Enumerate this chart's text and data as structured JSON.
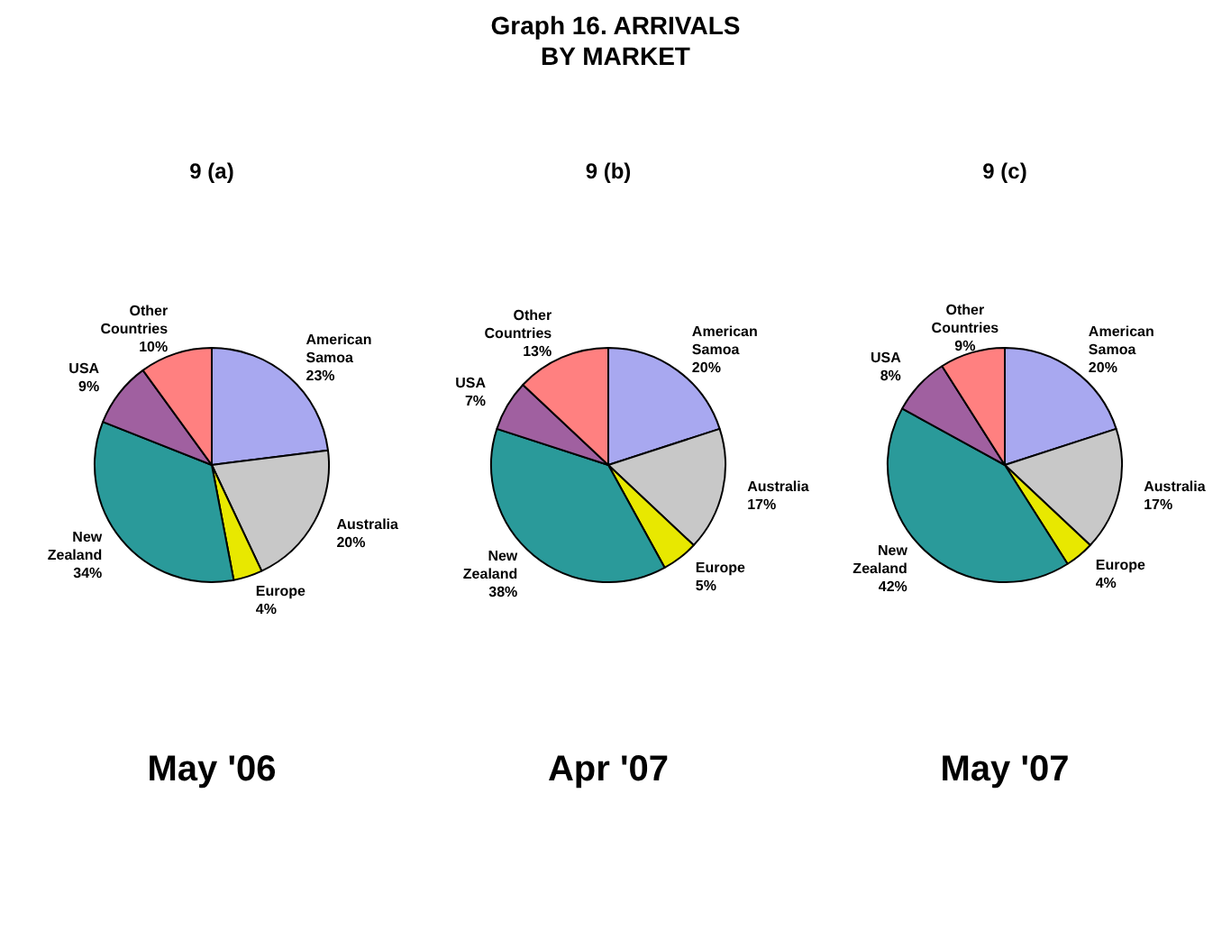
{
  "chart_data": [
    {
      "type": "other",
      "title": "Graph 16. ARRIVALS BY MARKET"
    },
    {
      "type": "pie",
      "title": "9 (a)",
      "categories": [
        "American Samoa",
        "Australia",
        "Europe",
        "New Zealand",
        "USA",
        "Other Countries"
      ],
      "values": [
        23,
        20,
        4,
        34,
        9,
        10
      ],
      "value_labels": [
        "23%",
        "20%",
        "4%",
        "34%",
        "9%",
        "10%"
      ],
      "colors": [
        "#a8a8f0",
        "#c8c8c8",
        "#e8e800",
        "#2a9a9a",
        "#a060a0",
        "#ff8080"
      ],
      "legend": false,
      "annotations": [
        "May '06"
      ]
    },
    {
      "type": "pie",
      "title": "9 (b)",
      "categories": [
        "American Samoa",
        "Australia",
        "Europe",
        "New Zealand",
        "USA",
        "Other Countries"
      ],
      "values": [
        20,
        17,
        5,
        38,
        7,
        13
      ],
      "value_labels": [
        "20%",
        "17%",
        "5%",
        "38%",
        "7%",
        "13%"
      ],
      "colors": [
        "#a8a8f0",
        "#c8c8c8",
        "#e8e800",
        "#2a9a9a",
        "#a060a0",
        "#ff8080"
      ],
      "legend": false,
      "annotations": [
        "Apr '07"
      ]
    },
    {
      "type": "pie",
      "title": "9 (c)",
      "categories": [
        "American Samoa",
        "Australia",
        "Europe",
        "New Zealand",
        "USA",
        "Other Countries"
      ],
      "values": [
        20,
        17,
        4,
        42,
        8,
        9
      ],
      "value_labels": [
        "20%",
        "17%",
        "4%",
        "42%",
        "8%",
        "9%"
      ],
      "colors": [
        "#a8a8f0",
        "#c8c8c8",
        "#e8e800",
        "#2a9a9a",
        "#a060a0",
        "#ff8080"
      ],
      "legend": false,
      "annotations": [
        "May '07"
      ]
    }
  ]
}
